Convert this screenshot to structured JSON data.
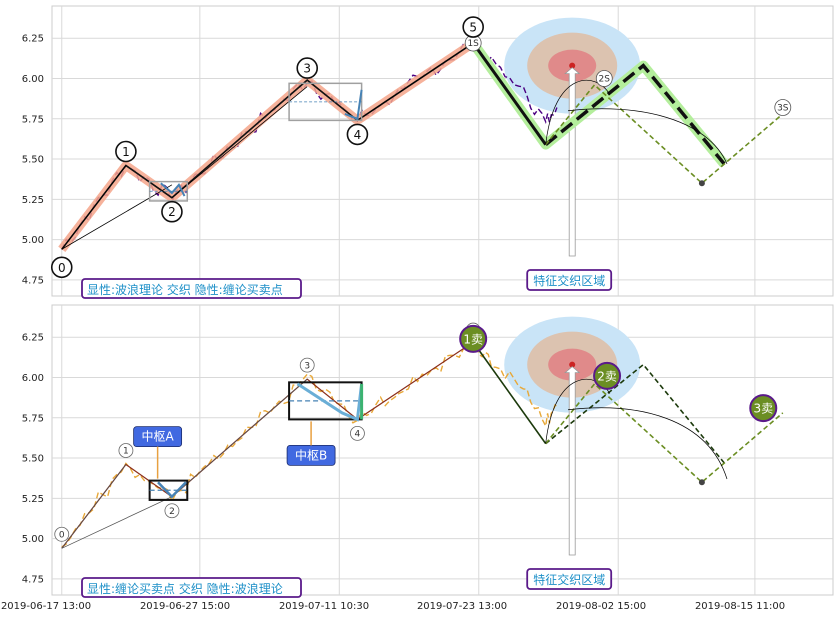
{
  "chart_data": [
    {
      "type": "line",
      "panel": "top",
      "y_ticks": [
        "6.25",
        "6.00",
        "5.75",
        "5.50",
        "5.25",
        "5.00",
        "4.75"
      ],
      "ylim": [
        4.65,
        6.45
      ],
      "grid": true,
      "wave_points": [
        {
          "label": "0",
          "x": 0.7,
          "y": 4.94
        },
        {
          "label": "1",
          "x": 5.3,
          "y": 5.46
        },
        {
          "label": "2",
          "x": 8.6,
          "y": 5.26
        },
        {
          "label": "3",
          "x": 18.3,
          "y": 5.99
        },
        {
          "label": "4",
          "x": 21.9,
          "y": 5.74
        },
        {
          "label": "5",
          "x": 30.2,
          "y": 6.22
        }
      ],
      "forecast": {
        "ABC": [
          [
            30.2,
            6.22
          ],
          [
            35.4,
            5.59
          ],
          [
            42.4,
            6.08
          ],
          [
            48.2,
            5.47
          ]
        ],
        "alt": [
          [
            35.4,
            5.59
          ],
          [
            38.9,
            5.96
          ],
          [
            46.6,
            5.35
          ],
          [
            52.4,
            5.78
          ]
        ]
      },
      "sell_marks": [
        "1S",
        "2S",
        "3S"
      ],
      "center_box": [
        [
          7.0,
          5.24,
          9.7,
          5.36
        ],
        [
          17.0,
          5.74,
          22.2,
          5.97
        ]
      ],
      "zone_label": "特征交织区域",
      "caption": "显性:波浪理论 交织 隐性:缠论买卖点"
    },
    {
      "type": "line",
      "panel": "bottom",
      "y_ticks": [
        "6.25",
        "6.00",
        "5.75",
        "5.50",
        "5.25",
        "5.00",
        "4.75"
      ],
      "ylim": [
        4.65,
        6.45
      ],
      "grid": true,
      "x_ticks": [
        "2019-06-17 13:00",
        "2019-06-27 15:00",
        "2019-07-11 10:30",
        "2019-07-23 13:00",
        "2019-08-02 15:00",
        "2019-08-15 11:00"
      ],
      "wave_points": [
        {
          "label": "0",
          "x": 0.7,
          "y": 4.94
        },
        {
          "label": "1",
          "x": 5.3,
          "y": 5.46
        },
        {
          "label": "2",
          "x": 8.6,
          "y": 5.26
        },
        {
          "label": "3",
          "x": 18.3,
          "y": 5.99
        },
        {
          "label": "4",
          "x": 21.9,
          "y": 5.74
        },
        {
          "label": "",
          "x": 30.2,
          "y": 6.22
        }
      ],
      "sell_points": [
        {
          "label": "1卖",
          "x": 30.2,
          "y": 6.24
        },
        {
          "label": "2卖",
          "x": 39.8,
          "y": 6.01
        },
        {
          "label": "3卖",
          "x": 51.0,
          "y": 5.81
        }
      ],
      "centers": [
        {
          "label": "中枢A",
          "box": [
            7.0,
            5.24,
            9.7,
            5.36
          ]
        },
        {
          "label": "中枢B",
          "box": [
            17.0,
            5.74,
            22.2,
            5.97
          ]
        }
      ],
      "zone_label": "特征交织区域",
      "caption": "显性:缠论买卖点 交织 隐性:波浪理论"
    }
  ],
  "colors": {
    "purple_price": "#4b0082",
    "orange_price": "#e8a838",
    "salmon_band": "#f4a58a",
    "green_band": "#b4ee9c",
    "olive": "#6b8e23",
    "steel": "#4682b4",
    "caption_text": "#1e90c8",
    "caption_border": "#5a1a8a",
    "center_label_bg": "#4169e1"
  }
}
